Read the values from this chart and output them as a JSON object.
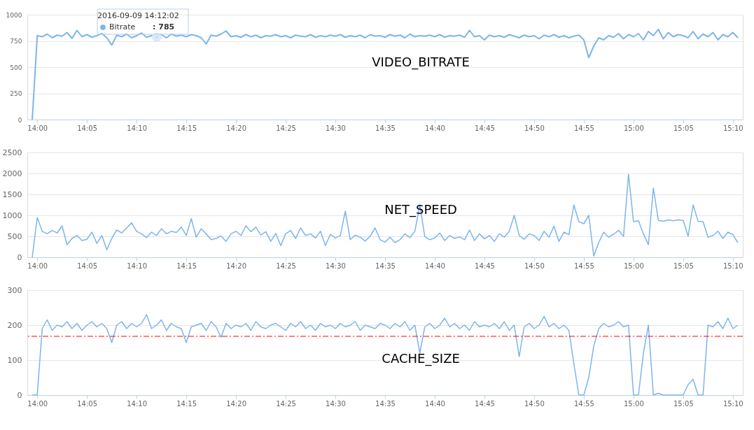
{
  "chart_data": [
    {
      "type": "line",
      "title": "VIDEO_BITRATE",
      "annotations": [
        {
          "text": "2016-09-09 14:12:02",
          "x": "2016-09-09T14:12:02",
          "y": 785
        },
        {
          "text": ": 785",
          "x": "2016-09-09T14:12:02",
          "y": 785
        }
      ],
      "x": [
        "2016-09-09T13:59:30",
        "2016-09-09T14:00:00",
        "2016-09-09T14:00:30",
        "2016-09-09T14:01:00",
        "2016-09-09T14:01:30",
        "2016-09-09T14:02:00",
        "2016-09-09T14:02:30",
        "2016-09-09T14:03:00",
        "2016-09-09T14:03:30",
        "2016-09-09T14:04:00",
        "2016-09-09T14:04:30",
        "2016-09-09T14:05:00",
        "2016-09-09T14:05:30",
        "2016-09-09T14:06:00",
        "2016-09-09T14:06:30",
        "2016-09-09T14:07:00",
        "2016-09-09T14:07:30",
        "2016-09-09T14:08:00",
        "2016-09-09T14:08:30",
        "2016-09-09T14:09:00",
        "2016-09-09T14:09:30",
        "2016-09-09T14:10:00",
        "2016-09-09T14:10:30",
        "2016-09-09T14:11:00",
        "2016-09-09T14:11:30",
        "2016-09-09T14:12:00",
        "2016-09-09T14:12:30",
        "2016-09-09T14:13:00",
        "2016-09-09T14:13:30",
        "2016-09-09T14:14:00",
        "2016-09-09T14:14:30",
        "2016-09-09T14:15:00",
        "2016-09-09T14:15:30",
        "2016-09-09T14:16:00",
        "2016-09-09T14:16:30",
        "2016-09-09T14:17:00",
        "2016-09-09T14:17:30",
        "2016-09-09T14:18:00",
        "2016-09-09T14:18:30",
        "2016-09-09T14:19:00",
        "2016-09-09T14:19:30",
        "2016-09-09T14:20:00",
        "2016-09-09T14:20:30",
        "2016-09-09T14:21:00",
        "2016-09-09T14:21:30",
        "2016-09-09T14:22:00",
        "2016-09-09T14:22:30",
        "2016-09-09T14:23:00",
        "2016-09-09T14:23:30",
        "2016-09-09T14:24:00",
        "2016-09-09T14:24:30",
        "2016-09-09T14:25:00",
        "2016-09-09T14:25:30",
        "2016-09-09T14:26:00",
        "2016-09-09T14:26:30",
        "2016-09-09T14:27:00",
        "2016-09-09T14:27:30",
        "2016-09-09T14:28:00",
        "2016-09-09T14:28:30",
        "2016-09-09T14:29:00",
        "2016-09-09T14:29:30",
        "2016-09-09T14:30:00",
        "2016-09-09T14:30:30",
        "2016-09-09T14:31:00",
        "2016-09-09T14:31:30",
        "2016-09-09T14:32:00",
        "2016-09-09T14:32:30",
        "2016-09-09T14:33:00",
        "2016-09-09T14:33:30",
        "2016-09-09T14:34:00",
        "2016-09-09T14:34:30",
        "2016-09-09T14:35:00",
        "2016-09-09T14:35:30",
        "2016-09-09T14:36:00",
        "2016-09-09T14:36:30",
        "2016-09-09T14:37:00",
        "2016-09-09T14:37:30",
        "2016-09-09T14:38:00",
        "2016-09-09T14:38:30",
        "2016-09-09T14:39:00",
        "2016-09-09T14:39:30",
        "2016-09-09T14:40:00",
        "2016-09-09T14:40:30",
        "2016-09-09T14:41:00",
        "2016-09-09T14:41:30",
        "2016-09-09T14:42:00",
        "2016-09-09T14:42:30",
        "2016-09-09T14:43:00",
        "2016-09-09T14:43:30",
        "2016-09-09T14:44:00",
        "2016-09-09T14:44:30",
        "2016-09-09T14:45:00",
        "2016-09-09T14:45:30",
        "2016-09-09T14:46:00",
        "2016-09-09T14:46:30",
        "2016-09-09T14:47:00",
        "2016-09-09T14:47:30",
        "2016-09-09T14:48:00",
        "2016-09-09T14:48:30",
        "2016-09-09T14:49:00",
        "2016-09-09T14:49:30",
        "2016-09-09T14:50:00",
        "2016-09-09T14:50:30",
        "2016-09-09T14:51:00",
        "2016-09-09T14:51:30",
        "2016-09-09T14:52:00",
        "2016-09-09T14:52:30",
        "2016-09-09T14:53:00",
        "2016-09-09T14:53:30",
        "2016-09-09T14:54:00",
        "2016-09-09T14:54:30",
        "2016-09-09T14:55:00",
        "2016-09-09T14:55:30",
        "2016-09-09T14:56:00",
        "2016-09-09T14:56:30",
        "2016-09-09T14:57:00",
        "2016-09-09T14:57:30",
        "2016-09-09T14:58:00",
        "2016-09-09T14:58:30",
        "2016-09-09T14:59:00",
        "2016-09-09T14:59:30",
        "2016-09-09T15:00:00",
        "2016-09-09T15:00:30",
        "2016-09-09T15:01:00",
        "2016-09-09T15:01:30",
        "2016-09-09T15:02:00",
        "2016-09-09T15:02:30",
        "2016-09-09T15:03:00",
        "2016-09-09T15:03:30",
        "2016-09-09T15:04:00",
        "2016-09-09T15:04:30",
        "2016-09-09T15:05:00",
        "2016-09-09T15:05:30",
        "2016-09-09T15:06:00",
        "2016-09-09T15:06:30",
        "2016-09-09T15:07:00",
        "2016-09-09T15:07:30",
        "2016-09-09T15:08:00",
        "2016-09-09T15:08:30",
        "2016-09-09T15:09:00",
        "2016-09-09T15:09:30",
        "2016-09-09T15:10:00",
        "2016-09-09T15:10:30"
      ],
      "series": [
        {
          "name": "Bitrate",
          "color": "#7cb5ec",
          "values": [
            0,
            800,
            790,
            815,
            780,
            805,
            795,
            830,
            775,
            850,
            790,
            810,
            785,
            800,
            820,
            780,
            710,
            805,
            790,
            815,
            780,
            800,
            825,
            785,
            800,
            790,
            810,
            780,
            815,
            795,
            805,
            790,
            810,
            800,
            780,
            720,
            805,
            795,
            815,
            845,
            790,
            800,
            785,
            810,
            790,
            805,
            780,
            800,
            795,
            810,
            790,
            800,
            780,
            805,
            795,
            790,
            810,
            785,
            800,
            790,
            805,
            795,
            810,
            785,
            800,
            790,
            805,
            780,
            810,
            795,
            800,
            785,
            810,
            795,
            805,
            780,
            815,
            790,
            800,
            795,
            805,
            790,
            810,
            785,
            800,
            795,
            805,
            785,
            850,
            790,
            800,
            760,
            805,
            790,
            800,
            785,
            810,
            795,
            780,
            805,
            790,
            800,
            770,
            805,
            790,
            810,
            785,
            800,
            780,
            795,
            805,
            760,
            590,
            700,
            780,
            760,
            800,
            785,
            820,
            770,
            810,
            790,
            820,
            760,
            840,
            800,
            860,
            770,
            830,
            790,
            810,
            800,
            780,
            840,
            770,
            815,
            790,
            830,
            760,
            810,
            790,
            830,
            780
          ]
        }
      ],
      "xlim": [
        "2016-09-09T13:59",
        "2016-09-09T15:11"
      ],
      "xticks": [
        {
          "value": "2016-09-09T14:00",
          "label": "14:00"
        },
        {
          "value": "2016-09-09T14:05",
          "label": "14:05"
        },
        {
          "value": "2016-09-09T14:10",
          "label": "14:10"
        },
        {
          "value": "2016-09-09T14:15",
          "label": "14:15"
        },
        {
          "value": "2016-09-09T14:20",
          "label": "14:20"
        },
        {
          "value": "2016-09-09T14:25",
          "label": "14:25"
        },
        {
          "value": "2016-09-09T14:30",
          "label": "14:30"
        },
        {
          "value": "2016-09-09T14:35",
          "label": "14:35"
        },
        {
          "value": "2016-09-09T14:40",
          "label": "14:40"
        },
        {
          "value": "2016-09-09T14:45",
          "label": "14:45"
        },
        {
          "value": "2016-09-09T14:50",
          "label": "14:50"
        },
        {
          "value": "2016-09-09T14:55",
          "label": "14:55"
        },
        {
          "value": "2016-09-09T15:00",
          "label": "15:00"
        },
        {
          "value": "2016-09-09T15:05",
          "label": "15:05"
        },
        {
          "value": "2016-09-09T15:10",
          "label": "15:10"
        }
      ],
      "ylim": [
        0,
        1000
      ],
      "yticks": [
        0,
        250,
        500,
        750,
        1000
      ],
      "grid": "y",
      "line_style": "solid",
      "marker": "none"
    },
    {
      "type": "line",
      "title": "NET_SPEED",
      "x": [
        "2016-09-09T13:59:30",
        "2016-09-09T14:00:00",
        "2016-09-09T14:00:30",
        "2016-09-09T14:01:00",
        "2016-09-09T14:01:30",
        "2016-09-09T14:02:00",
        "2016-09-09T14:02:30",
        "2016-09-09T14:03:00",
        "2016-09-09T14:03:30",
        "2016-09-09T14:04:00",
        "2016-09-09T14:04:30",
        "2016-09-09T14:05:00",
        "2016-09-09T14:05:30",
        "2016-09-09T14:06:00",
        "2016-09-09T14:06:30",
        "2016-09-09T14:07:00",
        "2016-09-09T14:07:30",
        "2016-09-09T14:08:00",
        "2016-09-09T14:08:30",
        "2016-09-09T14:09:00",
        "2016-09-09T14:09:30",
        "2016-09-09T14:10:00",
        "2016-09-09T14:10:30",
        "2016-09-09T14:11:00",
        "2016-09-09T14:11:30",
        "2016-09-09T14:12:00",
        "2016-09-09T14:12:30",
        "2016-09-09T14:13:00",
        "2016-09-09T14:13:30",
        "2016-09-09T14:14:00",
        "2016-09-09T14:14:30",
        "2016-09-09T14:15:00",
        "2016-09-09T14:15:30",
        "2016-09-09T14:16:00",
        "2016-09-09T14:16:30",
        "2016-09-09T14:17:00",
        "2016-09-09T14:17:30",
        "2016-09-09T14:18:00",
        "2016-09-09T14:18:30",
        "2016-09-09T14:19:00",
        "2016-09-09T14:19:30",
        "2016-09-09T14:20:00",
        "2016-09-09T14:20:30",
        "2016-09-09T14:21:00",
        "2016-09-09T14:21:30",
        "2016-09-09T14:22:00",
        "2016-09-09T14:22:30",
        "2016-09-09T14:23:00",
        "2016-09-09T14:23:30",
        "2016-09-09T14:24:00",
        "2016-09-09T14:24:30",
        "2016-09-09T14:25:00",
        "2016-09-09T14:25:30",
        "2016-09-09T14:26:00",
        "2016-09-09T14:26:30",
        "2016-09-09T14:27:00",
        "2016-09-09T14:27:30",
        "2016-09-09T14:28:00",
        "2016-09-09T14:28:30",
        "2016-09-09T14:29:00",
        "2016-09-09T14:29:30",
        "2016-09-09T14:30:00",
        "2016-09-09T14:30:30",
        "2016-09-09T14:31:00",
        "2016-09-09T14:31:30",
        "2016-09-09T14:32:00",
        "2016-09-09T14:32:30",
        "2016-09-09T14:33:00",
        "2016-09-09T14:33:30",
        "2016-09-09T14:34:00",
        "2016-09-09T14:34:30",
        "2016-09-09T14:35:00",
        "2016-09-09T14:35:30",
        "2016-09-09T14:36:00",
        "2016-09-09T14:36:30",
        "2016-09-09T14:37:00",
        "2016-09-09T14:37:30",
        "2016-09-09T14:38:00",
        "2016-09-09T14:38:30",
        "2016-09-09T14:39:00",
        "2016-09-09T14:39:30",
        "2016-09-09T14:40:00",
        "2016-09-09T14:40:30",
        "2016-09-09T14:41:00",
        "2016-09-09T14:41:30",
        "2016-09-09T14:42:00",
        "2016-09-09T14:42:30",
        "2016-09-09T14:43:00",
        "2016-09-09T14:43:30",
        "2016-09-09T14:44:00",
        "2016-09-09T14:44:30",
        "2016-09-09T14:45:00",
        "2016-09-09T14:45:30",
        "2016-09-09T14:46:00",
        "2016-09-09T14:46:30",
        "2016-09-09T14:47:00",
        "2016-09-09T14:47:30",
        "2016-09-09T14:48:00",
        "2016-09-09T14:48:30",
        "2016-09-09T14:49:00",
        "2016-09-09T14:49:30",
        "2016-09-09T14:50:00",
        "2016-09-09T14:50:30",
        "2016-09-09T14:51:00",
        "2016-09-09T14:51:30",
        "2016-09-09T14:52:00",
        "2016-09-09T14:52:30",
        "2016-09-09T14:53:00",
        "2016-09-09T14:53:30",
        "2016-09-09T14:54:00",
        "2016-09-09T14:54:30",
        "2016-09-09T14:55:00",
        "2016-09-09T14:55:30",
        "2016-09-09T14:56:00",
        "2016-09-09T14:56:30",
        "2016-09-09T14:57:00",
        "2016-09-09T14:57:30",
        "2016-09-09T14:58:00",
        "2016-09-09T14:58:30",
        "2016-09-09T14:59:00",
        "2016-09-09T14:59:30",
        "2016-09-09T15:00:00",
        "2016-09-09T15:00:30",
        "2016-09-09T15:01:00",
        "2016-09-09T15:01:30",
        "2016-09-09T15:02:00",
        "2016-09-09T15:02:30",
        "2016-09-09T15:03:00",
        "2016-09-09T15:03:30",
        "2016-09-09T15:04:00",
        "2016-09-09T15:04:30",
        "2016-09-09T15:05:00",
        "2016-09-09T15:05:30",
        "2016-09-09T15:06:00",
        "2016-09-09T15:06:30",
        "2016-09-09T15:07:00",
        "2016-09-09T15:07:30",
        "2016-09-09T15:08:00",
        "2016-09-09T15:08:30",
        "2016-09-09T15:09:00",
        "2016-09-09T15:09:30",
        "2016-09-09T15:10:00",
        "2016-09-09T15:10:30"
      ],
      "series": [
        {
          "color": "#7cb5ec",
          "values": [
            0,
            950,
            620,
            560,
            640,
            580,
            750,
            300,
            450,
            520,
            400,
            430,
            600,
            330,
            520,
            180,
            450,
            650,
            580,
            700,
            820,
            620,
            560,
            470,
            600,
            520,
            680,
            560,
            620,
            590,
            720,
            520,
            920,
            480,
            680,
            560,
            420,
            450,
            510,
            380,
            560,
            620,
            520,
            750,
            610,
            720,
            530,
            610,
            380,
            570,
            280,
            560,
            640,
            450,
            700,
            520,
            560,
            460,
            620,
            280,
            550,
            460,
            520,
            1100,
            420,
            530,
            480,
            390,
            500,
            700,
            420,
            360,
            480,
            350,
            420,
            560,
            470,
            620,
            1250,
            490,
            420,
            460,
            580,
            400,
            520,
            450,
            490,
            420,
            650,
            400,
            560,
            440,
            520,
            380,
            560,
            480,
            620,
            1000,
            520,
            430,
            560,
            520,
            400,
            620,
            480,
            740,
            380,
            600,
            540,
            1250,
            850,
            800,
            1000,
            30,
            350,
            600,
            480,
            550,
            640,
            500,
            1980,
            850,
            870,
            560,
            300,
            1650,
            880,
            860,
            890,
            870,
            890,
            880,
            500,
            1250,
            860,
            850,
            480,
            520,
            620,
            450,
            600,
            540,
            350
          ]
        }
      ],
      "xlim": [
        "2016-09-09T13:59",
        "2016-09-09T15:11"
      ],
      "xticks": [
        {
          "value": "2016-09-09T14:00",
          "label": "14:00"
        },
        {
          "value": "2016-09-09T14:05",
          "label": "14:05"
        },
        {
          "value": "2016-09-09T14:10",
          "label": "14:10"
        },
        {
          "value": "2016-09-09T14:15",
          "label": "14:15"
        },
        {
          "value": "2016-09-09T14:20",
          "label": "14:20"
        },
        {
          "value": "2016-09-09T14:25",
          "label": "14:25"
        },
        {
          "value": "2016-09-09T14:30",
          "label": "14:30"
        },
        {
          "value": "2016-09-09T14:35",
          "label": "14:35"
        },
        {
          "value": "2016-09-09T14:40",
          "label": "14:40"
        },
        {
          "value": "2016-09-09T14:45",
          "label": "14:45"
        },
        {
          "value": "2016-09-09T14:50",
          "label": "14:50"
        },
        {
          "value": "2016-09-09T14:55",
          "label": "14:55"
        },
        {
          "value": "2016-09-09T15:00",
          "label": "15:00"
        },
        {
          "value": "2016-09-09T15:05",
          "label": "15:05"
        },
        {
          "value": "2016-09-09T15:10",
          "label": "15:10"
        }
      ],
      "ylim": [
        0,
        2500
      ],
      "yticks": [
        0,
        500,
        1000,
        1500,
        2000,
        2500
      ],
      "grid": "y",
      "line_style": "solid",
      "marker": "none"
    },
    {
      "type": "line",
      "title": "CACHE_SIZE",
      "x": [
        "2016-09-09T13:59:30",
        "2016-09-09T14:00:00",
        "2016-09-09T14:00:30",
        "2016-09-09T14:01:00",
        "2016-09-09T14:01:30",
        "2016-09-09T14:02:00",
        "2016-09-09T14:02:30",
        "2016-09-09T14:03:00",
        "2016-09-09T14:03:30",
        "2016-09-09T14:04:00",
        "2016-09-09T14:04:30",
        "2016-09-09T14:05:00",
        "2016-09-09T14:05:30",
        "2016-09-09T14:06:00",
        "2016-09-09T14:06:30",
        "2016-09-09T14:07:00",
        "2016-09-09T14:07:30",
        "2016-09-09T14:08:00",
        "2016-09-09T14:08:30",
        "2016-09-09T14:09:00",
        "2016-09-09T14:09:30",
        "2016-09-09T14:10:00",
        "2016-09-09T14:10:30",
        "2016-09-09T14:11:00",
        "2016-09-09T14:11:30",
        "2016-09-09T14:12:00",
        "2016-09-09T14:12:30",
        "2016-09-09T14:13:00",
        "2016-09-09T14:13:30",
        "2016-09-09T14:14:00",
        "2016-09-09T14:14:30",
        "2016-09-09T14:15:00",
        "2016-09-09T14:15:30",
        "2016-09-09T14:16:00",
        "2016-09-09T14:16:30",
        "2016-09-09T14:17:00",
        "2016-09-09T14:17:30",
        "2016-09-09T14:18:00",
        "2016-09-09T14:18:30",
        "2016-09-09T14:19:00",
        "2016-09-09T14:19:30",
        "2016-09-09T14:20:00",
        "2016-09-09T14:20:30",
        "2016-09-09T14:21:00",
        "2016-09-09T14:21:30",
        "2016-09-09T14:22:00",
        "2016-09-09T14:22:30",
        "2016-09-09T14:23:00",
        "2016-09-09T14:23:30",
        "2016-09-09T14:24:00",
        "2016-09-09T14:24:30",
        "2016-09-09T14:25:00",
        "2016-09-09T14:25:30",
        "2016-09-09T14:26:00",
        "2016-09-09T14:26:30",
        "2016-09-09T14:27:00",
        "2016-09-09T14:27:30",
        "2016-09-09T14:28:00",
        "2016-09-09T14:28:30",
        "2016-09-09T14:29:00",
        "2016-09-09T14:29:30",
        "2016-09-09T14:30:00",
        "2016-09-09T14:30:30",
        "2016-09-09T14:31:00",
        "2016-09-09T14:31:30",
        "2016-09-09T14:32:00",
        "2016-09-09T14:32:30",
        "2016-09-09T14:33:00",
        "2016-09-09T14:33:30",
        "2016-09-09T14:34:00",
        "2016-09-09T14:34:30",
        "2016-09-09T14:35:00",
        "2016-09-09T14:35:30",
        "2016-09-09T14:36:00",
        "2016-09-09T14:36:30",
        "2016-09-09T14:37:00",
        "2016-09-09T14:37:30",
        "2016-09-09T14:38:00",
        "2016-09-09T14:38:30",
        "2016-09-09T14:39:00",
        "2016-09-09T14:39:30",
        "2016-09-09T14:40:00",
        "2016-09-09T14:40:30",
        "2016-09-09T14:41:00",
        "2016-09-09T14:41:30",
        "2016-09-09T14:42:00",
        "2016-09-09T14:42:30",
        "2016-09-09T14:43:00",
        "2016-09-09T14:43:30",
        "2016-09-09T14:44:00",
        "2016-09-09T14:44:30",
        "2016-09-09T14:45:00",
        "2016-09-09T14:45:30",
        "2016-09-09T14:46:00",
        "2016-09-09T14:46:30",
        "2016-09-09T14:47:00",
        "2016-09-09T14:47:30",
        "2016-09-09T14:48:00",
        "2016-09-09T14:48:30",
        "2016-09-09T14:49:00",
        "2016-09-09T14:49:30",
        "2016-09-09T14:50:00",
        "2016-09-09T14:50:30",
        "2016-09-09T14:51:00",
        "2016-09-09T14:51:30",
        "2016-09-09T14:52:00",
        "2016-09-09T14:52:30",
        "2016-09-09T14:53:00",
        "2016-09-09T14:53:30",
        "2016-09-09T14:54:00",
        "2016-09-09T14:54:30",
        "2016-09-09T14:55:00",
        "2016-09-09T14:55:30",
        "2016-09-09T14:56:00",
        "2016-09-09T14:56:30",
        "2016-09-09T14:57:00",
        "2016-09-09T14:57:30",
        "2016-09-09T14:58:00",
        "2016-09-09T14:58:30",
        "2016-09-09T14:59:00",
        "2016-09-09T14:59:30",
        "2016-09-09T15:00:00",
        "2016-09-09T15:00:30",
        "2016-09-09T15:01:00",
        "2016-09-09T15:01:30",
        "2016-09-09T15:02:00",
        "2016-09-09T15:02:30",
        "2016-09-09T15:03:00",
        "2016-09-09T15:03:30",
        "2016-09-09T15:04:00",
        "2016-09-09T15:04:30",
        "2016-09-09T15:05:00",
        "2016-09-09T15:05:30",
        "2016-09-09T15:06:00",
        "2016-09-09T15:06:30",
        "2016-09-09T15:07:00",
        "2016-09-09T15:07:30",
        "2016-09-09T15:08:00",
        "2016-09-09T15:08:30",
        "2016-09-09T15:09:00",
        "2016-09-09T15:09:30",
        "2016-09-09T15:10:00",
        "2016-09-09T15:10:30"
      ],
      "series": [
        {
          "color": "#7cb5ec",
          "values": [
            0,
            0,
            190,
            215,
            185,
            200,
            195,
            210,
            190,
            205,
            185,
            200,
            210,
            195,
            205,
            190,
            150,
            200,
            210,
            190,
            205,
            195,
            205,
            230,
            190,
            200,
            215,
            185,
            205,
            195,
            190,
            150,
            195,
            200,
            205,
            185,
            210,
            195,
            165,
            205,
            190,
            200,
            195,
            205,
            185,
            210,
            195,
            190,
            200,
            205,
            195,
            185,
            205,
            195,
            210,
            190,
            200,
            185,
            205,
            195,
            200,
            190,
            205,
            195,
            200,
            210,
            185,
            200,
            195,
            190,
            205,
            200,
            190,
            205,
            195,
            210,
            185,
            200,
            120,
            195,
            205,
            190,
            200,
            220,
            195,
            205,
            190,
            200,
            185,
            210,
            195,
            200,
            195,
            205,
            190,
            210,
            185,
            200,
            110,
            195,
            205,
            190,
            200,
            225,
            195,
            205,
            190,
            200,
            185,
            90,
            0,
            0,
            50,
            140,
            190,
            205,
            195,
            200,
            210,
            195,
            200,
            0,
            0,
            120,
            200,
            0,
            5,
            0,
            0,
            0,
            0,
            0,
            30,
            45,
            0,
            0,
            200,
            195,
            210,
            190,
            220,
            190,
            200
          ]
        }
      ],
      "xlim": [
        "2016-09-09T13:59",
        "2016-09-09T15:11"
      ],
      "xticks": [
        {
          "value": "2016-09-09T14:00",
          "label": "14:00"
        },
        {
          "value": "2016-09-09T14:05",
          "label": "14:05"
        },
        {
          "value": "2016-09-09T14:10",
          "label": "14:10"
        },
        {
          "value": "2016-09-09T14:15",
          "label": "14:15"
        },
        {
          "value": "2016-09-09T14:20",
          "label": "14:20"
        },
        {
          "value": "2016-09-09T14:25",
          "label": "14:25"
        },
        {
          "value": "2016-09-09T14:30",
          "label": "14:30"
        },
        {
          "value": "2016-09-09T14:35",
          "label": "14:35"
        },
        {
          "value": "2016-09-09T14:40",
          "label": "14:40"
        },
        {
          "value": "2016-09-09T14:45",
          "label": "14:45"
        },
        {
          "value": "2016-09-09T14:50",
          "label": "14:50"
        },
        {
          "value": "2016-09-09T14:55",
          "label": "14:55"
        },
        {
          "value": "2016-09-09T15:00",
          "label": "15:00"
        },
        {
          "value": "2016-09-09T15:05",
          "label": "15:05"
        },
        {
          "value": "2016-09-09T15:10",
          "label": "15:10"
        }
      ],
      "ylim": [
        0,
        300
      ],
      "yticks": [
        0,
        100,
        200,
        300
      ],
      "grid": "y",
      "line_style": "solid",
      "marker": "none",
      "ref_lines": [
        {
          "axis": "y",
          "value": 168,
          "color": "#ff0000",
          "line_style": "dashed"
        }
      ]
    }
  ]
}
